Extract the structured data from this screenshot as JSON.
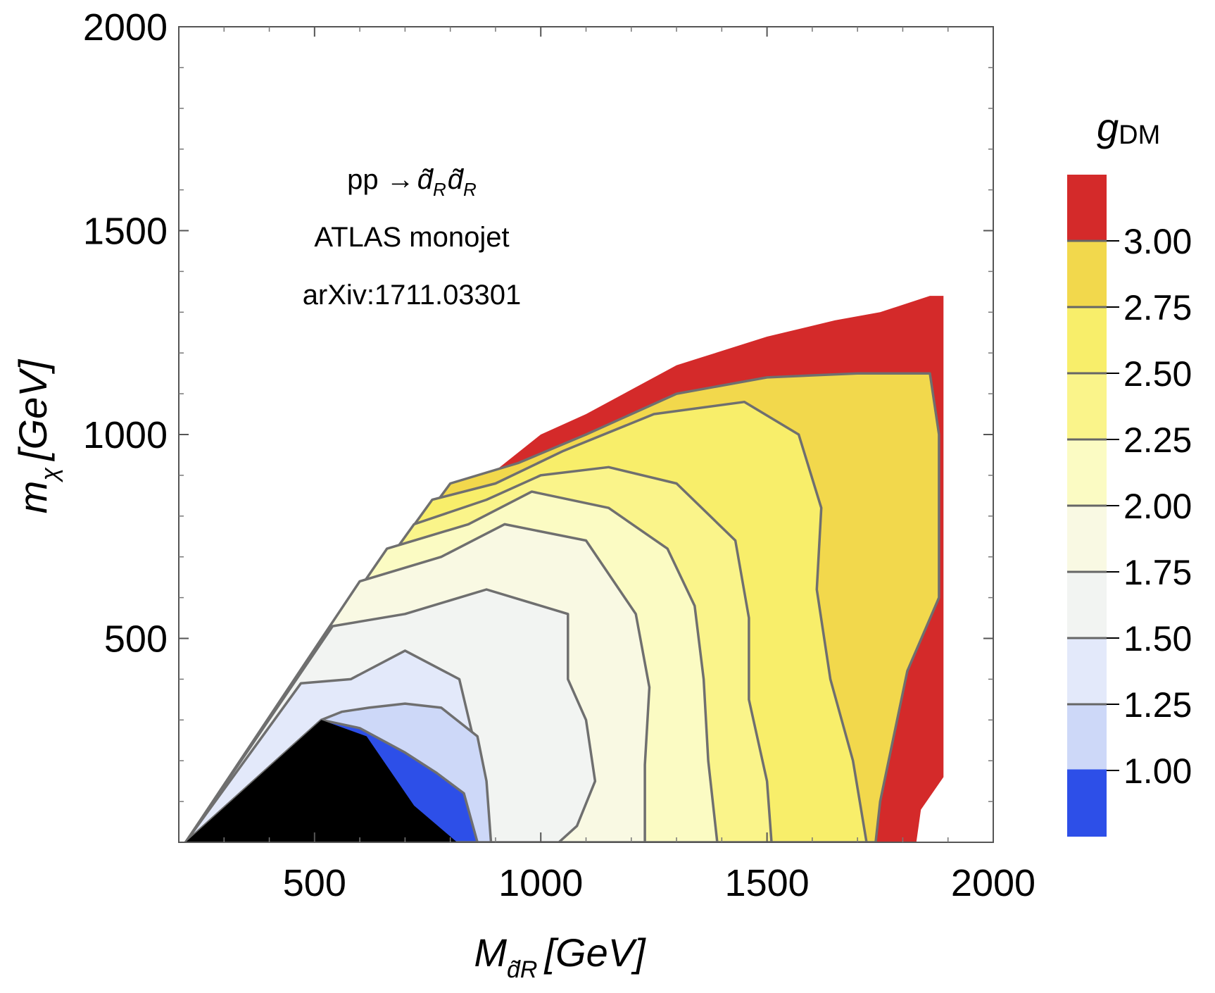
{
  "chart_data": {
    "type": "contour",
    "title": "",
    "annotations": [
      "pp →d̃ᵣd̃ᵣ",
      "ATLAS monojet",
      "arXiv:1711.03301"
    ],
    "annotation_parts": {
      "process_prefix": "pp →",
      "particle": "d̃",
      "particle_subscript": "R"
    },
    "xlabel": {
      "main": "M",
      "sub": "d̃R",
      "unit": "[GeV]"
    },
    "ylabel": {
      "main": "m",
      "sub": "χ",
      "unit": "[GeV]"
    },
    "xlim": [
      200,
      2000
    ],
    "ylim": [
      0,
      2000
    ],
    "x_ticks": [
      "500",
      "1000",
      "1500",
      "2000"
    ],
    "y_ticks": [
      "500",
      "1000",
      "1500",
      "2000"
    ],
    "x_tick_values": [
      500,
      1000,
      1500,
      2000
    ],
    "y_tick_values": [
      500,
      1000,
      1500,
      2000
    ],
    "colorbar": {
      "title_main": "g",
      "title_sub": "DM",
      "levels": [
        "1.00",
        "1.25",
        "1.50",
        "1.75",
        "2.00",
        "2.25",
        "2.50",
        "2.75",
        "3.00"
      ],
      "colors": [
        "#2d4fe8",
        "#cdd8f8",
        "#e3e9fa",
        "#f2f4f2",
        "#f9f9e3",
        "#fbfbc3",
        "#faf48a",
        "#f8ee6a",
        "#f2d84c",
        "#d42a2a"
      ]
    },
    "excluded_region_color": "#000000",
    "boundaries": {
      "excluded": [
        [
          215,
          0
        ],
        [
          515,
          300
        ],
        [
          615,
          260
        ],
        [
          720,
          90
        ],
        [
          815,
          0
        ]
      ],
      "g100": [
        [
          215,
          0
        ],
        [
          515,
          300
        ],
        [
          600,
          280
        ],
        [
          700,
          220
        ],
        [
          770,
          170
        ],
        [
          830,
          120
        ],
        [
          855,
          20
        ],
        [
          860,
          0
        ]
      ],
      "g125": [
        [
          215,
          0
        ],
        [
          515,
          300
        ],
        [
          560,
          320
        ],
        [
          620,
          330
        ],
        [
          700,
          340
        ],
        [
          780,
          330
        ],
        [
          860,
          260
        ],
        [
          880,
          150
        ],
        [
          890,
          0
        ]
      ],
      "g150": [
        [
          215,
          0
        ],
        [
          470,
          390
        ],
        [
          580,
          400
        ],
        [
          700,
          470
        ],
        [
          820,
          400
        ],
        [
          850,
          260
        ],
        [
          860,
          150
        ],
        [
          850,
          0
        ]
      ],
      "g175": [
        [
          215,
          0
        ],
        [
          540,
          530
        ],
        [
          700,
          560
        ],
        [
          880,
          620
        ],
        [
          1060,
          560
        ],
        [
          1060,
          400
        ],
        [
          1100,
          300
        ],
        [
          1120,
          150
        ],
        [
          1080,
          40
        ],
        [
          1040,
          0
        ]
      ],
      "g200": [
        [
          215,
          0
        ],
        [
          600,
          640
        ],
        [
          780,
          700
        ],
        [
          920,
          780
        ],
        [
          1100,
          740
        ],
        [
          1210,
          560
        ],
        [
          1240,
          380
        ],
        [
          1230,
          190
        ],
        [
          1230,
          0
        ]
      ],
      "g225": [
        [
          215,
          0
        ],
        [
          660,
          720
        ],
        [
          840,
          780
        ],
        [
          980,
          860
        ],
        [
          1150,
          820
        ],
        [
          1280,
          720
        ],
        [
          1340,
          580
        ],
        [
          1360,
          400
        ],
        [
          1370,
          200
        ],
        [
          1390,
          0
        ]
      ],
      "g250": [
        [
          215,
          0
        ],
        [
          720,
          780
        ],
        [
          880,
          840
        ],
        [
          1000,
          900
        ],
        [
          1150,
          920
        ],
        [
          1300,
          880
        ],
        [
          1430,
          740
        ],
        [
          1460,
          550
        ],
        [
          1460,
          350
        ],
        [
          1500,
          150
        ],
        [
          1510,
          0
        ]
      ],
      "g275": [
        [
          215,
          0
        ],
        [
          760,
          840
        ],
        [
          900,
          880
        ],
        [
          1050,
          960
        ],
        [
          1250,
          1050
        ],
        [
          1450,
          1080
        ],
        [
          1570,
          1000
        ],
        [
          1620,
          820
        ],
        [
          1610,
          620
        ],
        [
          1640,
          400
        ],
        [
          1690,
          200
        ],
        [
          1720,
          0
        ]
      ],
      "g300": [
        [
          215,
          0
        ],
        [
          800,
          880
        ],
        [
          950,
          930
        ],
        [
          1100,
          1000
        ],
        [
          1300,
          1100
        ],
        [
          1500,
          1140
        ],
        [
          1700,
          1150
        ],
        [
          1860,
          1150
        ],
        [
          1880,
          1000
        ],
        [
          1880,
          800
        ],
        [
          1880,
          600
        ],
        [
          1810,
          420
        ],
        [
          1780,
          260
        ],
        [
          1750,
          100
        ],
        [
          1740,
          0
        ]
      ],
      "outer": [
        [
          215,
          0
        ],
        [
          830,
          850
        ],
        [
          1000,
          1000
        ],
        [
          1100,
          1050
        ],
        [
          1300,
          1170
        ],
        [
          1500,
          1240
        ],
        [
          1650,
          1280
        ],
        [
          1750,
          1300
        ],
        [
          1860,
          1340
        ],
        [
          1890,
          1340
        ],
        [
          1890,
          160
        ],
        [
          1840,
          80
        ],
        [
          1830,
          0
        ]
      ]
    }
  }
}
